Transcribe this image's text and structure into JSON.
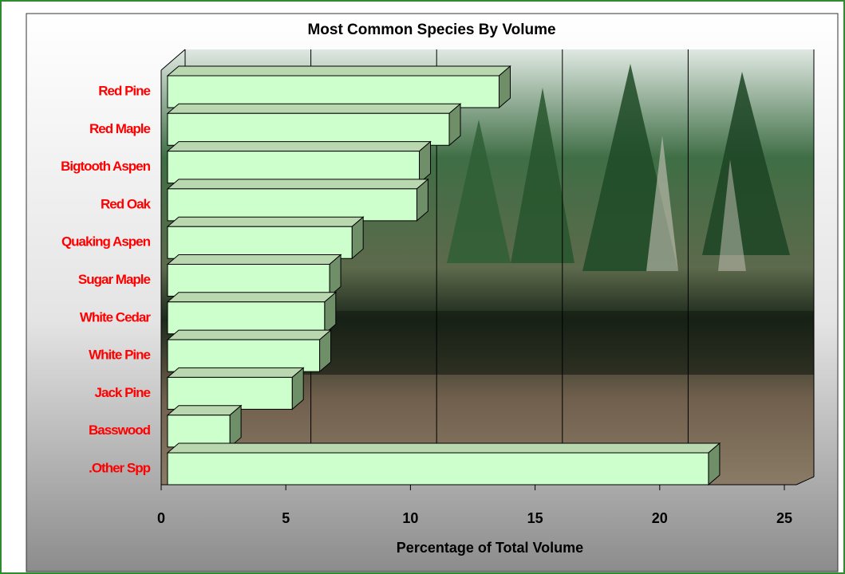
{
  "chart_data": {
    "type": "bar",
    "orientation": "horizontal",
    "title": "Most Common Species By Volume",
    "x_label": "Percentage of Total Volume",
    "categories": [
      "Red Pine",
      "Red Maple",
      "Bigtooth Aspen",
      "Red Oak",
      "Quaking Aspen",
      "Sugar Maple",
      "White Cedar",
      "White Pine",
      "Jack Pine",
      "Basswood",
      ".Other Spp"
    ],
    "values": [
      13.3,
      11.3,
      10.1,
      10.0,
      7.4,
      6.5,
      6.3,
      6.1,
      5.0,
      2.5,
      21.7
    ],
    "color": "#ccffcc",
    "label_color": "#ff0000",
    "xlim": [
      0,
      25
    ],
    "xticks": [
      0,
      5,
      10,
      15,
      20,
      25
    ],
    "grid": true
  }
}
